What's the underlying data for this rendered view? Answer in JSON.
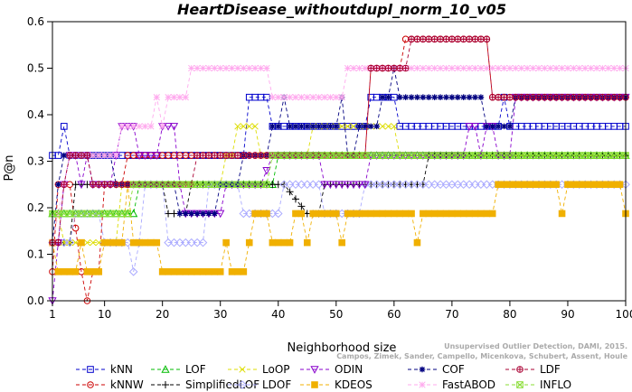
{
  "chart_data": {
    "type": "line",
    "title": "HeartDisease_withoutdupl_norm_10_v05",
    "xlabel": "Neighborhood size",
    "ylabel": "P@n",
    "xlim": [
      1,
      100
    ],
    "ylim": [
      0,
      0.6
    ],
    "xticks": [
      1,
      10,
      20,
      30,
      40,
      50,
      60,
      70,
      80,
      90,
      100
    ],
    "yticks": [
      0.0,
      0.1,
      0.2,
      0.3,
      0.4,
      0.5,
      0.6
    ],
    "grid": false,
    "legend_position": "bottom",
    "credit_lines": [
      "Campos, Zimek, Sander, Campello, Micenkova, Schubert, Assent, Houle",
      "Unsupervised Outlier Detection, DAMI, 2015."
    ],
    "series": [
      {
        "name": "kNN",
        "color": "#0000cc",
        "marker": "square",
        "points": [
          [
            1,
            0.3125
          ],
          [
            2,
            0.3125
          ],
          [
            3,
            0.375
          ],
          [
            4,
            0.3125
          ],
          [
            10,
            0.3125
          ],
          [
            11,
            0.3125
          ],
          [
            34,
            0.3125
          ],
          [
            35,
            0.4375
          ],
          [
            38,
            0.4375
          ],
          [
            39,
            0.375
          ],
          [
            55,
            0.375
          ],
          [
            56,
            0.4375
          ],
          [
            60,
            0.4375
          ],
          [
            61,
            0.375
          ],
          [
            78,
            0.375
          ],
          [
            79,
            0.4375
          ],
          [
            80,
            0.375
          ],
          [
            100,
            0.375
          ]
        ]
      },
      {
        "name": "kNNW",
        "color": "#cc0000",
        "marker": "circle",
        "points": [
          [
            1,
            0.0625
          ],
          [
            2,
            0.25
          ],
          [
            4,
            0.25
          ],
          [
            6,
            0.0625
          ],
          [
            7,
            0.0
          ],
          [
            8,
            0.0625
          ],
          [
            9,
            0.0625
          ],
          [
            10,
            0.25
          ],
          [
            13,
            0.25
          ],
          [
            14,
            0.3125
          ],
          [
            55,
            0.3125
          ],
          [
            56,
            0.5
          ],
          [
            61,
            0.5
          ],
          [
            62,
            0.5625
          ],
          [
            76,
            0.5625
          ],
          [
            77,
            0.4375
          ],
          [
            100,
            0.4375
          ]
        ]
      },
      {
        "name": "LOF",
        "color": "#00bb00",
        "marker": "triangle",
        "points": [
          [
            1,
            0.1875
          ],
          [
            2,
            0.1875
          ],
          [
            15,
            0.1875
          ],
          [
            16,
            0.25
          ],
          [
            39,
            0.25
          ],
          [
            40,
            0.3125
          ],
          [
            72,
            0.3125
          ],
          [
            73,
            0.3125
          ],
          [
            100,
            0.3125
          ]
        ]
      },
      {
        "name": "SimplifiedLOF",
        "color": "#000000",
        "marker": "plus",
        "points": [
          [
            1,
            0.125
          ],
          [
            3,
            0.125
          ],
          [
            4,
            0.125
          ],
          [
            5,
            0.25
          ],
          [
            20,
            0.25
          ],
          [
            21,
            0.1875
          ],
          [
            24,
            0.1875
          ],
          [
            25,
            0.25
          ],
          [
            40,
            0.25
          ],
          [
            41,
            0.25
          ],
          [
            45,
            0.1875
          ],
          [
            47,
            0.1875
          ],
          [
            48,
            0.25
          ],
          [
            65,
            0.25
          ],
          [
            66,
            0.3125
          ],
          [
            100,
            0.3125
          ]
        ]
      },
      {
        "name": "LoOP",
        "color": "#dddd00",
        "marker": "x",
        "points": [
          [
            1,
            0.125
          ],
          [
            2,
            0.1875
          ],
          [
            3,
            0.125
          ],
          [
            12,
            0.125
          ],
          [
            13,
            0.25
          ],
          [
            30,
            0.25
          ],
          [
            31,
            0.3125
          ],
          [
            32,
            0.3125
          ],
          [
            33,
            0.375
          ],
          [
            36,
            0.375
          ],
          [
            37,
            0.3125
          ],
          [
            45,
            0.3125
          ],
          [
            46,
            0.375
          ],
          [
            60,
            0.375
          ],
          [
            61,
            0.3125
          ],
          [
            100,
            0.3125
          ]
        ]
      },
      {
        "name": "LDOF",
        "color": "#aaaaff",
        "marker": "diamond",
        "points": [
          [
            1,
            0.125
          ],
          [
            4,
            0.125
          ],
          [
            5,
            0.1875
          ],
          [
            9,
            0.1875
          ],
          [
            10,
            0.125
          ],
          [
            14,
            0.125
          ],
          [
            15,
            0.0625
          ],
          [
            16,
            0.125
          ],
          [
            17,
            0.25
          ],
          [
            20,
            0.25
          ],
          [
            21,
            0.125
          ],
          [
            27,
            0.125
          ],
          [
            28,
            0.25
          ],
          [
            33,
            0.25
          ],
          [
            34,
            0.1875
          ],
          [
            40,
            0.1875
          ],
          [
            41,
            0.25
          ],
          [
            47,
            0.25
          ],
          [
            48,
            0.1875
          ],
          [
            54,
            0.1875
          ],
          [
            55,
            0.25
          ],
          [
            62,
            0.25
          ],
          [
            63,
            0.25
          ],
          [
            70,
            0.25
          ],
          [
            74,
            0.25
          ],
          [
            75,
            0.25
          ],
          [
            80,
            0.25
          ],
          [
            85,
            0.25
          ],
          [
            100,
            0.25
          ]
        ]
      },
      {
        "name": "ODIN",
        "color": "#8800cc",
        "marker": "triangle-down",
        "points": [
          [
            1,
            0.0
          ],
          [
            2,
            0.125
          ],
          [
            3,
            0.25
          ],
          [
            4,
            0.3125
          ],
          [
            5,
            0.3125
          ],
          [
            6,
            0.25
          ],
          [
            7,
            0.3125
          ],
          [
            8,
            0.25
          ],
          [
            9,
            0.25
          ],
          [
            10,
            0.25
          ],
          [
            11,
            0.25
          ],
          [
            12,
            0.3125
          ],
          [
            13,
            0.375
          ],
          [
            14,
            0.375
          ],
          [
            15,
            0.375
          ],
          [
            16,
            0.3125
          ],
          [
            17,
            0.3125
          ],
          [
            18,
            0.3125
          ],
          [
            19,
            0.3125
          ],
          [
            20,
            0.375
          ],
          [
            21,
            0.375
          ],
          [
            22,
            0.375
          ],
          [
            23,
            0.25
          ],
          [
            24,
            0.1875
          ],
          [
            30,
            0.1875
          ],
          [
            31,
            0.25
          ],
          [
            36,
            0.25
          ],
          [
            37,
            0.25
          ],
          [
            38,
            0.28
          ],
          [
            39,
            0.3125
          ],
          [
            47,
            0.3125
          ],
          [
            48,
            0.25
          ],
          [
            55,
            0.25
          ],
          [
            56,
            0.3125
          ],
          [
            72,
            0.3125
          ],
          [
            73,
            0.375
          ],
          [
            74,
            0.375
          ],
          [
            75,
            0.3125
          ],
          [
            76,
            0.375
          ],
          [
            77,
            0.375
          ],
          [
            78,
            0.3125
          ],
          [
            80,
            0.3125
          ],
          [
            81,
            0.4375
          ],
          [
            100,
            0.4375
          ]
        ]
      },
      {
        "name": "KDEOS",
        "color": "#f0b000",
        "marker": "square-filled",
        "points": [
          [
            1,
            0.125
          ],
          [
            2,
            0.0625
          ],
          [
            5,
            0.0625
          ],
          [
            6,
            0.125
          ],
          [
            7,
            0.0625
          ],
          [
            9,
            0.0625
          ],
          [
            10,
            0.125
          ],
          [
            13,
            0.125
          ],
          [
            14,
            0.25
          ],
          [
            15,
            0.125
          ],
          [
            16,
            0.125
          ],
          [
            17,
            0.125
          ],
          [
            18,
            0.125
          ],
          [
            19,
            0.125
          ],
          [
            20,
            0.0625
          ],
          [
            30,
            0.0625
          ],
          [
            31,
            0.125
          ],
          [
            32,
            0.0625
          ],
          [
            34,
            0.0625
          ],
          [
            35,
            0.125
          ],
          [
            36,
            0.1875
          ],
          [
            38,
            0.1875
          ],
          [
            39,
            0.125
          ],
          [
            41,
            0.125
          ],
          [
            42,
            0.125
          ],
          [
            43,
            0.1875
          ],
          [
            44,
            0.1875
          ],
          [
            45,
            0.125
          ],
          [
            46,
            0.1875
          ],
          [
            50,
            0.1875
          ],
          [
            51,
            0.125
          ],
          [
            52,
            0.1875
          ],
          [
            63,
            0.1875
          ],
          [
            64,
            0.125
          ],
          [
            65,
            0.1875
          ],
          [
            77,
            0.1875
          ],
          [
            78,
            0.25
          ],
          [
            88,
            0.25
          ],
          [
            89,
            0.1875
          ],
          [
            90,
            0.25
          ],
          [
            99,
            0.25
          ],
          [
            100,
            0.1875
          ]
        ]
      },
      {
        "name": "COF",
        "color": "#000080",
        "marker": "asterisk",
        "points": [
          [
            1,
            0.125
          ],
          [
            2,
            0.25
          ],
          [
            3,
            0.3125
          ],
          [
            4,
            0.3125
          ],
          [
            11,
            0.3125
          ],
          [
            12,
            0.25
          ],
          [
            22,
            0.25
          ],
          [
            23,
            0.1875
          ],
          [
            29,
            0.1875
          ],
          [
            30,
            0.25
          ],
          [
            33,
            0.25
          ],
          [
            34,
            0.3125
          ],
          [
            35,
            0.3125
          ],
          [
            36,
            0.3125
          ],
          [
            37,
            0.3125
          ],
          [
            38,
            0.3125
          ],
          [
            39,
            0.375
          ],
          [
            40,
            0.375
          ],
          [
            41,
            0.4375
          ],
          [
            42,
            0.375
          ],
          [
            50,
            0.375
          ],
          [
            51,
            0.4375
          ],
          [
            52,
            0.3125
          ],
          [
            53,
            0.3125
          ],
          [
            54,
            0.375
          ],
          [
            57,
            0.375
          ],
          [
            58,
            0.4375
          ],
          [
            59,
            0.4375
          ],
          [
            60,
            0.5
          ],
          [
            61,
            0.4375
          ],
          [
            75,
            0.4375
          ],
          [
            76,
            0.375
          ],
          [
            80,
            0.375
          ],
          [
            81,
            0.4375
          ],
          [
            100,
            0.4375
          ]
        ]
      },
      {
        "name": "FastABOD",
        "color": "#ffaaee",
        "marker": "star",
        "points": [
          [
            1,
            0.125
          ],
          [
            2,
            0.1875
          ],
          [
            3,
            0.25
          ],
          [
            4,
            0.3125
          ],
          [
            8,
            0.3125
          ],
          [
            12,
            0.3125
          ],
          [
            13,
            0.375
          ],
          [
            18,
            0.375
          ],
          [
            19,
            0.4375
          ],
          [
            20,
            0.375
          ],
          [
            21,
            0.4375
          ],
          [
            23,
            0.4375
          ],
          [
            24,
            0.4375
          ],
          [
            25,
            0.5
          ],
          [
            38,
            0.5
          ],
          [
            39,
            0.4375
          ],
          [
            44,
            0.4375
          ],
          [
            45,
            0.4375
          ],
          [
            50,
            0.4375
          ],
          [
            51,
            0.4375
          ],
          [
            52,
            0.5
          ],
          [
            100,
            0.5
          ]
        ]
      },
      {
        "name": "LDF",
        "color": "#aa0033",
        "marker": "circle-plus",
        "points": [
          [
            1,
            0.125
          ],
          [
            2,
            0.125
          ],
          [
            3,
            0.25
          ],
          [
            4,
            0.3125
          ],
          [
            5,
            0.3125
          ],
          [
            6,
            0.3125
          ],
          [
            7,
            0.3125
          ],
          [
            8,
            0.25
          ],
          [
            9,
            0.25
          ],
          [
            25,
            0.25
          ],
          [
            26,
            0.3125
          ],
          [
            55,
            0.3125
          ],
          [
            56,
            0.5
          ],
          [
            62,
            0.5
          ],
          [
            63,
            0.5625
          ],
          [
            76,
            0.5625
          ],
          [
            77,
            0.4375
          ],
          [
            100,
            0.4375
          ]
        ]
      },
      {
        "name": "INFLO",
        "color": "#88dd33",
        "marker": "square-x",
        "points": [
          [
            1,
            0.1875
          ],
          [
            2,
            0.1875
          ],
          [
            14,
            0.1875
          ],
          [
            15,
            0.25
          ],
          [
            38,
            0.25
          ],
          [
            39,
            0.3125
          ],
          [
            100,
            0.3125
          ]
        ]
      }
    ]
  }
}
